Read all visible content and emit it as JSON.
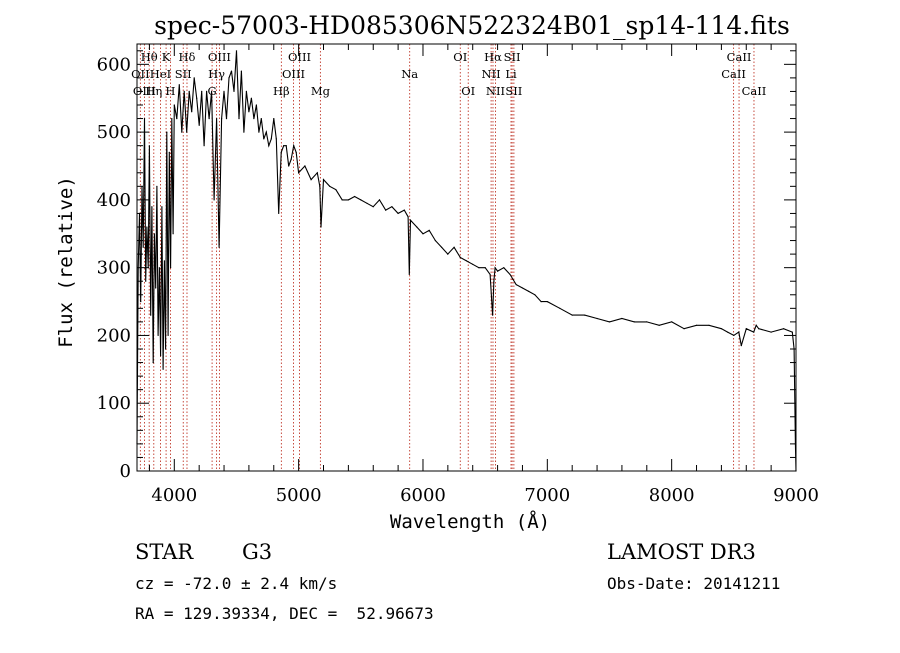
{
  "chart_data": {
    "type": "line",
    "title": "spec-57003-HD085306N522324B01_sp14-114.fits",
    "xlabel": "Wavelength (Å)",
    "ylabel": "Flux (relative)",
    "xlim": [
      3700,
      9000
    ],
    "ylim": [
      0,
      630
    ],
    "x_ticks": [
      4000,
      5000,
      6000,
      7000,
      8000,
      9000
    ],
    "y_ticks": [
      0,
      100,
      200,
      300,
      400,
      500,
      600
    ],
    "grid": false,
    "spectral_lines": [
      {
        "name": "Hθ",
        "wavelength": 3798,
        "row": 0
      },
      {
        "name": "OII",
        "wavelength": 3727,
        "row": 1
      },
      {
        "name": "OIII",
        "wavelength": 3760,
        "row": 2
      },
      {
        "name": "Hη",
        "wavelength": 3835,
        "row": 2
      },
      {
        "name": "K",
        "wavelength": 3934,
        "row": 0
      },
      {
        "name": "HeI",
        "wavelength": 3889,
        "row": 1
      },
      {
        "name": "H",
        "wavelength": 3969,
        "row": 2
      },
      {
        "name": "Hδ",
        "wavelength": 4102,
        "row": 0
      },
      {
        "name": "SII",
        "wavelength": 4072,
        "row": 1
      },
      {
        "name": "OIII",
        "wavelength": 4363,
        "row": 0
      },
      {
        "name": "Hγ",
        "wavelength": 4340,
        "row": 1
      },
      {
        "name": "G",
        "wavelength": 4304,
        "row": 2
      },
      {
        "name": "Hβ",
        "wavelength": 4861,
        "row": 2
      },
      {
        "name": "OIII",
        "wavelength": 5007,
        "row": 0
      },
      {
        "name": "OIII",
        "wavelength": 4959,
        "row": 1
      },
      {
        "name": "Mg",
        "wavelength": 5175,
        "row": 2
      },
      {
        "name": "Na",
        "wavelength": 5893,
        "row": 1
      },
      {
        "name": "OI",
        "wavelength": 6300,
        "row": 0
      },
      {
        "name": "OI",
        "wavelength": 6364,
        "row": 2
      },
      {
        "name": "Hα",
        "wavelength": 6563,
        "row": 0
      },
      {
        "name": "NII",
        "wavelength": 6548,
        "row": 1
      },
      {
        "name": "NII",
        "wavelength": 6583,
        "row": 2
      },
      {
        "name": "SII",
        "wavelength": 6717,
        "row": 0
      },
      {
        "name": "Li",
        "wavelength": 6708,
        "row": 1
      },
      {
        "name": "SII",
        "wavelength": 6731,
        "row": 2
      },
      {
        "name": "CaII",
        "wavelength": 8542,
        "row": 0
      },
      {
        "name": "CaII",
        "wavelength": 8498,
        "row": 1
      },
      {
        "name": "CaII",
        "wavelength": 8662,
        "row": 2
      }
    ],
    "series": [
      {
        "name": "spectrum",
        "x": [
          3700,
          3710,
          3720,
          3730,
          3740,
          3750,
          3760,
          3770,
          3780,
          3790,
          3800,
          3810,
          3820,
          3830,
          3840,
          3850,
          3860,
          3870,
          3880,
          3890,
          3900,
          3910,
          3920,
          3930,
          3940,
          3950,
          3960,
          3970,
          3980,
          3990,
          4000,
          4020,
          4040,
          4060,
          4080,
          4100,
          4120,
          4140,
          4160,
          4180,
          4200,
          4220,
          4240,
          4260,
          4280,
          4300,
          4320,
          4340,
          4360,
          4380,
          4400,
          4420,
          4440,
          4460,
          4480,
          4500,
          4520,
          4540,
          4560,
          4580,
          4600,
          4620,
          4640,
          4660,
          4680,
          4700,
          4720,
          4740,
          4760,
          4780,
          4800,
          4820,
          4840,
          4860,
          4880,
          4900,
          4920,
          4940,
          4960,
          4980,
          5000,
          5050,
          5100,
          5150,
          5170,
          5180,
          5200,
          5250,
          5300,
          5350,
          5400,
          5450,
          5500,
          5550,
          5600,
          5650,
          5700,
          5750,
          5800,
          5850,
          5880,
          5890,
          5900,
          5950,
          6000,
          6050,
          6100,
          6150,
          6200,
          6250,
          6300,
          6350,
          6400,
          6450,
          6500,
          6540,
          6560,
          6570,
          6580,
          6600,
          6650,
          6700,
          6750,
          6800,
          6850,
          6900,
          6950,
          7000,
          7100,
          7200,
          7300,
          7400,
          7500,
          7600,
          7700,
          7800,
          7900,
          8000,
          8100,
          8200,
          8300,
          8400,
          8450,
          8500,
          8540,
          8560,
          8600,
          8660,
          8680,
          8700,
          8800,
          8900,
          8970,
          8985,
          8995,
          9000
        ],
        "values": [
          40,
          300,
          380,
          250,
          420,
          330,
          520,
          280,
          360,
          300,
          480,
          230,
          390,
          160,
          350,
          270,
          420,
          200,
          300,
          170,
          390,
          150,
          310,
          180,
          500,
          200,
          470,
          300,
          520,
          350,
          540,
          520,
          570,
          500,
          560,
          500,
          560,
          530,
          580,
          550,
          510,
          560,
          480,
          560,
          520,
          560,
          400,
          520,
          330,
          520,
          560,
          520,
          580,
          590,
          560,
          620,
          520,
          590,
          500,
          560,
          530,
          550,
          520,
          540,
          500,
          520,
          490,
          500,
          480,
          490,
          520,
          490,
          380,
          470,
          480,
          480,
          450,
          460,
          480,
          470,
          440,
          450,
          430,
          440,
          420,
          360,
          430,
          420,
          415,
          400,
          400,
          405,
          400,
          395,
          390,
          400,
          385,
          390,
          380,
          385,
          375,
          290,
          370,
          360,
          350,
          355,
          340,
          330,
          320,
          330,
          315,
          310,
          305,
          300,
          300,
          290,
          230,
          280,
          300,
          295,
          300,
          290,
          275,
          270,
          265,
          260,
          250,
          250,
          240,
          230,
          230,
          225,
          220,
          225,
          220,
          220,
          215,
          220,
          210,
          215,
          215,
          210,
          205,
          200,
          205,
          185,
          210,
          205,
          215,
          210,
          205,
          210,
          205,
          180,
          40,
          0
        ]
      }
    ],
    "info": {
      "object_class": "STAR",
      "subclass": "G3",
      "survey": "LAMOST DR3",
      "redshift": "cz = -72.0 ± 2.4 km/s",
      "obs_date": "Obs-Date: 20141211",
      "coords": "RA = 129.39334, DEC =  52.96673"
    }
  }
}
